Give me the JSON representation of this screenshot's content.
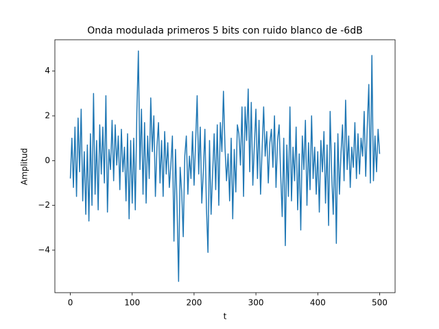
{
  "chart_data": {
    "type": "line",
    "title": "Onda modulada primeros 5 bits con ruido blanco de -6dB",
    "xlabel": "t",
    "ylabel": "Amplitud",
    "xlim": [
      -25,
      525
    ],
    "ylim": [
      -5.9,
      5.4
    ],
    "xticks": [
      0,
      100,
      200,
      300,
      400,
      500
    ],
    "yticks": [
      {
        "value": -4,
        "label": "−4"
      },
      {
        "value": -2,
        "label": "−2"
      },
      0,
      2,
      4
    ],
    "grid": false,
    "x": [
      0,
      2.5,
      5,
      7.5,
      10,
      12.5,
      15,
      17.5,
      20,
      22.5,
      25,
      27.5,
      30,
      32.5,
      35,
      37.5,
      40,
      42.5,
      45,
      47.5,
      50,
      52.5,
      55,
      57.5,
      60,
      62.5,
      65,
      67.5,
      70,
      72.5,
      75,
      77.5,
      80,
      82.5,
      85,
      87.5,
      90,
      92.5,
      95,
      97.5,
      100,
      102.5,
      105,
      107.5,
      110,
      112.5,
      115,
      117.5,
      120,
      122.5,
      125,
      127.5,
      130,
      132.5,
      135,
      137.5,
      140,
      142.5,
      145,
      147.5,
      150,
      152.5,
      155,
      157.5,
      160,
      162.5,
      165,
      167.5,
      170,
      172.5,
      175,
      177.5,
      180,
      182.5,
      185,
      187.5,
      190,
      192.5,
      195,
      197.5,
      200,
      202.5,
      205,
      207.5,
      210,
      212.5,
      215,
      217.5,
      220,
      222.5,
      225,
      227.5,
      230,
      232.5,
      235,
      237.5,
      240,
      242.5,
      245,
      247.5,
      250,
      252.5,
      255,
      257.5,
      260,
      262.5,
      265,
      267.5,
      270,
      272.5,
      275,
      277.5,
      280,
      282.5,
      285,
      287.5,
      290,
      292.5,
      295,
      297.5,
      300,
      302.5,
      305,
      307.5,
      310,
      312.5,
      315,
      317.5,
      320,
      322.5,
      325,
      327.5,
      330,
      332.5,
      335,
      337.5,
      340,
      342.5,
      345,
      347.5,
      350,
      352.5,
      355,
      357.5,
      360,
      362.5,
      365,
      367.5,
      370,
      372.5,
      375,
      377.5,
      380,
      382.5,
      385,
      387.5,
      390,
      392.5,
      395,
      397.5,
      400,
      402.5,
      405,
      407.5,
      410,
      412.5,
      415,
      417.5,
      420,
      422.5,
      425,
      427.5,
      430,
      432.5,
      435,
      437.5,
      440,
      442.5,
      445,
      447.5,
      450,
      452.5,
      455,
      457.5,
      460,
      462.5,
      465,
      467.5,
      470,
      472.5,
      475,
      477.5,
      480,
      482.5,
      485,
      487.5,
      490,
      492.5,
      495,
      497.5,
      500
    ],
    "series": [
      {
        "name": "Amplitud",
        "color": "#1f77b4",
        "values": [
          -0.8,
          1.0,
          -1.2,
          1.5,
          -1.6,
          1.9,
          -0.5,
          2.3,
          -1.8,
          0.4,
          -2.4,
          0.7,
          -2.7,
          1.2,
          -2.0,
          3.0,
          -1.5,
          0.9,
          -2.2,
          1.6,
          -0.6,
          1.5,
          -1.0,
          2.9,
          -2.3,
          0.5,
          -0.4,
          1.8,
          -0.9,
          1.6,
          -0.2,
          1.1,
          -1.3,
          1.4,
          -0.5,
          0.6,
          -1.8,
          1.2,
          -2.6,
          0.9,
          -1.9,
          1.0,
          -2.2,
          2.1,
          4.9,
          -0.4,
          2.3,
          -1.5,
          1.7,
          -1.9,
          1.1,
          -0.8,
          2.8,
          0.4,
          2.0,
          -1.6,
          0.6,
          1.7,
          -1.0,
          0.9,
          -1.6,
          1.3,
          -0.6,
          0.8,
          -1.2,
          -0.2,
          1.1,
          -3.6,
          0.5,
          -2.0,
          -5.4,
          -0.3,
          -1.4,
          -3.4,
          0.2,
          1.1,
          -1.5,
          0.2,
          -0.8,
          1.3,
          -1.1,
          0.8,
          2.9,
          -0.6,
          1.5,
          -1.9,
          -0.5,
          1.4,
          -2.1,
          -4.1,
          0.9,
          -2.4,
          -0.6,
          1.2,
          -1.3,
          1.6,
          -2.0,
          1.7,
          0.4,
          3.1,
          0.6,
          -0.9,
          0.3,
          -1.8,
          1.0,
          -2.6,
          0.5,
          -1.4,
          1.6,
          1.2,
          -0.2,
          2.4,
          -1.6,
          2.4,
          0.9,
          3.2,
          -0.5,
          2.6,
          -1.1,
          0.7,
          2.3,
          -0.8,
          1.8,
          -1.5,
          0.5,
          2.4,
          0.2,
          1.3,
          -1.0,
          0.8,
          1.4,
          -0.3,
          2.0,
          -1.2,
          0.9,
          1.6,
          -0.6,
          -2.5,
          1.0,
          -3.8,
          0.7,
          -1.6,
          2.4,
          -1.8,
          0.6,
          -0.9,
          1.5,
          -2.2,
          0.3,
          -3.1,
          1.1,
          -0.4,
          1.8,
          -2.0,
          0.8,
          -1.3,
          2.0,
          -0.8,
          0.6,
          -1.5,
          0.4,
          -2.3,
          0.9,
          -0.5,
          1.3,
          -1.9,
          0.7,
          -2.9,
          2.2,
          -0.6,
          -2.4,
          0.8,
          -3.7,
          1.2,
          -1.5,
          0.3,
          1.6,
          -0.9,
          2.7,
          -0.4,
          1.1,
          -1.2,
          0.6,
          -0.3,
          1.7,
          -0.8,
          1.2,
          -0.6,
          1.0,
          0.2,
          2.2,
          -0.7,
          1.5,
          3.4,
          -1.0,
          4.7,
          -0.9,
          1.1,
          -0.5,
          1.4,
          0.3
        ]
      }
    ]
  }
}
